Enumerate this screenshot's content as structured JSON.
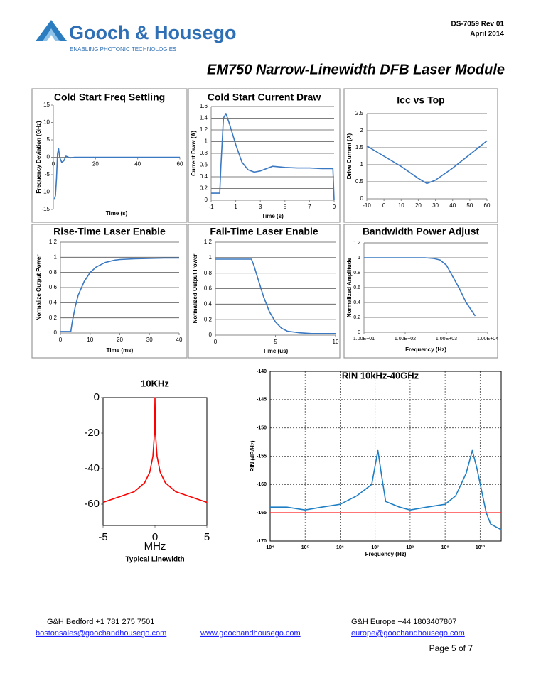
{
  "header": {
    "doc_id": "DS-7059 Rev 01",
    "date": "April 2014",
    "logo": "Gooch & Housego",
    "tagline": "ENABLING PHOTONIC TECHNOLOGIES",
    "title": "EM750 Narrow-Linewidth DFB Laser Module"
  },
  "chart_data": [
    {
      "type": "line",
      "title": "Cold Start Freq Settling",
      "xlabel": "Time (s)",
      "ylabel": "Frequency Deviation (GHz)",
      "color": "#3a78c2",
      "grid": false,
      "xlim": [
        0,
        60
      ],
      "xticks": [
        0,
        20,
        40,
        60
      ],
      "ylim": [
        -15,
        15
      ],
      "yticks": [
        -15,
        -10,
        -5,
        0,
        5,
        10,
        15
      ],
      "x": [
        0.5,
        1,
        1.5,
        2,
        2.5,
        3,
        4,
        5,
        6,
        8,
        10,
        20,
        30,
        40,
        50,
        60
      ],
      "values": [
        -12,
        -11,
        -6,
        1,
        2.5,
        0,
        -1.5,
        -1,
        0.3,
        -0.2,
        0,
        0,
        0,
        0,
        0,
        0
      ]
    },
    {
      "type": "line",
      "title": "Cold Start Current Draw",
      "xlabel": "Time (s)",
      "ylabel": "Current Draw (A)",
      "color": "#3a78c2",
      "grid": true,
      "xlim": [
        -1,
        9
      ],
      "xticks": [
        -1,
        1,
        3,
        5,
        7,
        9
      ],
      "ylim": [
        0,
        1.6
      ],
      "yticks": [
        0,
        0.2,
        0.4,
        0.6,
        0.8,
        1,
        1.2,
        1.4,
        1.6
      ],
      "x": [
        -1,
        -0.3,
        -0.2,
        0,
        0.2,
        0.5,
        1,
        1.5,
        2,
        2.5,
        3,
        4,
        5,
        6,
        7,
        8,
        8.9,
        9
      ],
      "values": [
        0.12,
        0.12,
        0.6,
        1.4,
        1.48,
        1.3,
        0.95,
        0.65,
        0.52,
        0.48,
        0.5,
        0.58,
        0.56,
        0.55,
        0.55,
        0.54,
        0.54,
        0
      ]
    },
    {
      "type": "line",
      "title": "Icc vs Top",
      "ylabel": "Drive Current (A)",
      "color": "#3a78c2",
      "grid": true,
      "xlim": [
        -10,
        60
      ],
      "xticks": [
        -10,
        0,
        10,
        20,
        30,
        40,
        50,
        60
      ],
      "ylim": [
        0,
        2.5
      ],
      "yticks": [
        0,
        0.5,
        1,
        1.5,
        2,
        2.5
      ],
      "x": [
        -10,
        0,
        10,
        20,
        25,
        30,
        40,
        50,
        60
      ],
      "values": [
        1.55,
        1.25,
        0.95,
        0.6,
        0.45,
        0.55,
        0.9,
        1.3,
        1.7
      ]
    },
    {
      "type": "line",
      "title": "Rise-Time Laser Enable",
      "xlabel": "Time (ms)",
      "ylabel": "Normalize Output Power",
      "color": "#3a78c2",
      "grid": true,
      "xlim": [
        0,
        40
      ],
      "xticks": [
        0,
        10,
        20,
        30,
        40
      ],
      "ylim": [
        0,
        1.2
      ],
      "yticks": [
        0,
        0.2,
        0.4,
        0.6,
        0.8,
        1,
        1.2
      ],
      "x": [
        0,
        3.5,
        4,
        5,
        6,
        8,
        10,
        12,
        15,
        18,
        20,
        25,
        30,
        35,
        40
      ],
      "values": [
        0.02,
        0.02,
        0.15,
        0.35,
        0.5,
        0.68,
        0.8,
        0.87,
        0.93,
        0.96,
        0.97,
        0.98,
        0.985,
        0.99,
        0.99
      ]
    },
    {
      "type": "line",
      "title": "Fall-Time Laser Enable",
      "xlabel": "Time (us)",
      "ylabel": "Normalized Output Power",
      "color": "#3a78c2",
      "grid": true,
      "xlim": [
        0,
        10
      ],
      "xticks": [
        0,
        5,
        10
      ],
      "ylim": [
        0,
        1.2
      ],
      "yticks": [
        0,
        0.2,
        0.4,
        0.6,
        0.8,
        1,
        1.2
      ],
      "x": [
        0,
        3,
        3.2,
        3.5,
        4,
        4.5,
        5,
        5.5,
        6,
        7,
        8,
        9,
        10
      ],
      "values": [
        0.98,
        0.98,
        0.9,
        0.75,
        0.5,
        0.3,
        0.17,
        0.09,
        0.05,
        0.03,
        0.02,
        0.02,
        0.02
      ]
    },
    {
      "type": "line",
      "title": "Bandwidth Power Adjust",
      "xlabel": "Frequency (Hz)",
      "ylabel": "Normalized Amplitude",
      "color": "#3a78c2",
      "grid": true,
      "xscale": "log",
      "xlim": [
        10,
        10000
      ],
      "xticks": [
        {
          "value": 10,
          "label": "1.00E+01"
        },
        {
          "value": 100,
          "label": "1.00E+02"
        },
        {
          "value": 1000,
          "label": "1.00E+03"
        },
        {
          "value": 10000,
          "label": "1.00E+04"
        }
      ],
      "ylim": [
        0,
        1.2
      ],
      "yticks": [
        0,
        0.2,
        0.4,
        0.6,
        0.8,
        1,
        1.2
      ],
      "x": [
        10,
        50,
        100,
        200,
        300,
        500,
        700,
        1000,
        2000,
        3000,
        5000
      ],
      "values": [
        1,
        1,
        1,
        1,
        1,
        0.99,
        0.97,
        0.9,
        0.6,
        0.4,
        0.22
      ]
    },
    {
      "type": "line",
      "title": "10KHz",
      "xlabel": "MHz",
      "caption": "Typical Linewidth",
      "color": "#ff0000",
      "grid": false,
      "xlim": [
        -5,
        5
      ],
      "xticks": [
        -5,
        0,
        5
      ],
      "ylim": [
        -72,
        0
      ],
      "yticks": [
        0,
        -20,
        -40,
        -60
      ],
      "x": [
        -5,
        -4,
        -3,
        -2,
        -1,
        -0.5,
        -0.2,
        -0.05,
        0,
        0.05,
        0.2,
        0.5,
        1,
        2,
        3,
        4,
        5
      ],
      "values": [
        -59,
        -57,
        -55,
        -53,
        -48,
        -42,
        -33,
        -20,
        0,
        -20,
        -33,
        -42,
        -48,
        -53,
        -55,
        -57,
        -59
      ]
    },
    {
      "type": "line",
      "title": "RIN 10kHz-40GHz",
      "xlabel": "Frequency (Hz)",
      "ylabel": "RIN (dB/Hz)",
      "grid": "both",
      "xscale": "log",
      "xlim": [
        10000,
        40000000000
      ],
      "xticks": [
        {
          "value": 10000,
          "label": "10⁴"
        },
        {
          "value": 100000,
          "label": "10⁵"
        },
        {
          "value": 1000000,
          "label": "10⁶"
        },
        {
          "value": 10000000,
          "label": "10⁷"
        },
        {
          "value": 100000000,
          "label": "10⁸"
        },
        {
          "value": 1000000000,
          "label": "10⁹"
        },
        {
          "value": 10000000000,
          "label": "10¹⁰"
        }
      ],
      "ylim": [
        -170,
        -140
      ],
      "yticks": [
        -170,
        -165,
        -160,
        -155,
        -150,
        -145,
        -140
      ],
      "series": [
        {
          "color": "#1f7fc4",
          "x": [
            10000,
            30000,
            100000,
            300000,
            1000000,
            3000000,
            8000000,
            12000000,
            15000000,
            20000000,
            50000000,
            100000000,
            300000000,
            1000000000,
            2000000000,
            4000000000,
            6000000000,
            8000000000,
            15000000000,
            20000000000,
            40000000000
          ],
          "values": [
            -164,
            -164,
            -164.5,
            -164,
            -163.5,
            -162,
            -160,
            -154,
            -158,
            -163,
            -164,
            -164.5,
            -164,
            -163.5,
            -162,
            -158,
            -154,
            -157,
            -165,
            -167,
            -168
          ]
        },
        {
          "color": "#ff2020",
          "x": [
            10000,
            40000000000
          ],
          "values": [
            -165,
            -165
          ]
        }
      ]
    }
  ],
  "footer": {
    "bedford_phone": "G&H Bedford +1 781 275 7501",
    "bedford_email": "bostonsales@goochandhousego.com",
    "website": "www.goochandhousego.com",
    "europe_phone": "G&H Europe +44 1803407807",
    "europe_email": "europe@goochandhousego.com",
    "page": "Page 5 of 7"
  }
}
